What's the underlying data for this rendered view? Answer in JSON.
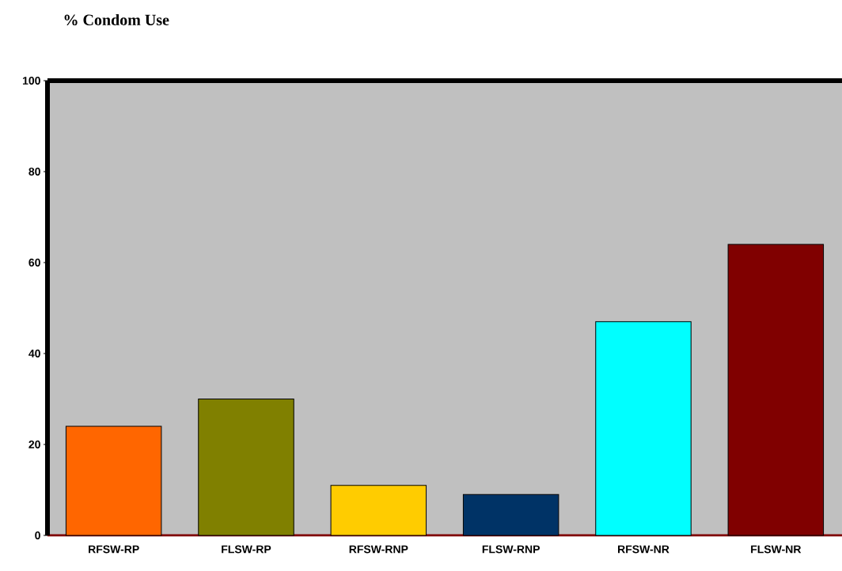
{
  "chart_data": {
    "type": "bar",
    "title": "%  Condom Use",
    "categories": [
      "RFSW-RP",
      "FLSW-RP",
      "RFSW-RNP",
      "FLSW-RNP",
      "RFSW-NR",
      "FLSW-NR"
    ],
    "values": [
      24,
      30,
      11,
      9,
      47,
      64
    ],
    "colors": [
      "#ff6600",
      "#808000",
      "#ffcc00",
      "#003366",
      "#00ffff",
      "#800000"
    ],
    "ylim": [
      0,
      100
    ],
    "yticks": [
      0,
      20,
      40,
      60,
      80,
      100
    ]
  }
}
